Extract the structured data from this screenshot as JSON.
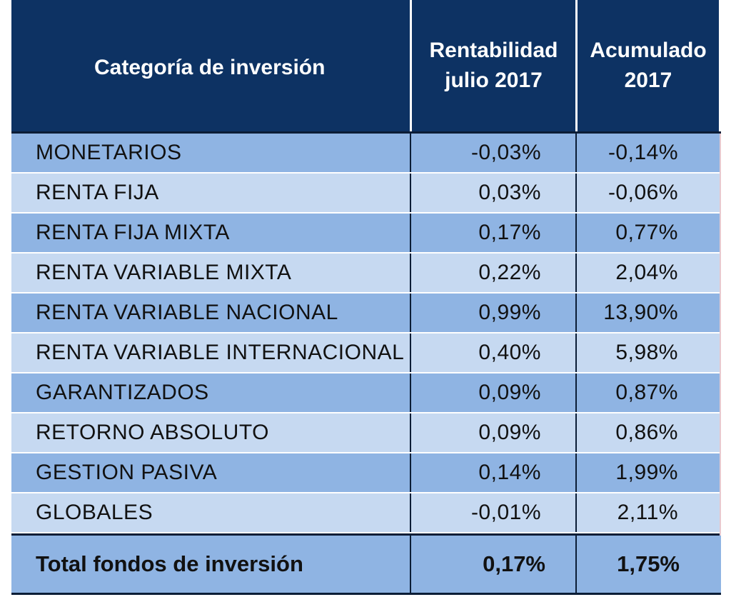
{
  "table": {
    "headers": {
      "category": "Categoría de inversión",
      "monthly_line1": "Rentabilidad",
      "monthly_line2": "julio 2017",
      "ytd_line1": "Acumulado",
      "ytd_line2": "2017"
    },
    "rows": [
      {
        "category": "MONETARIOS",
        "monthly": "-0,03%",
        "ytd": "-0,14%"
      },
      {
        "category": "RENTA FIJA",
        "monthly": "0,03%",
        "ytd": "-0,06%"
      },
      {
        "category": "RENTA FIJA MIXTA",
        "monthly": "0,17%",
        "ytd": "0,77%"
      },
      {
        "category": "RENTA VARIABLE MIXTA",
        "monthly": "0,22%",
        "ytd": "2,04%"
      },
      {
        "category": "RENTA VARIABLE NACIONAL",
        "monthly": "0,99%",
        "ytd": "13,90%"
      },
      {
        "category": "RENTA VARIABLE INTERNACIONAL",
        "monthly": "0,40%",
        "ytd": "5,98%"
      },
      {
        "category": "GARANTIZADOS",
        "monthly": "0,09%",
        "ytd": "0,87%"
      },
      {
        "category": "RETORNO ABSOLUTO",
        "monthly": "0,09%",
        "ytd": "0,86%"
      },
      {
        "category": "GESTION PASIVA",
        "monthly": "0,14%",
        "ytd": "1,99%"
      },
      {
        "category": "GLOBALES",
        "monthly": "-0,01%",
        "ytd": "2,11%"
      }
    ],
    "total": {
      "category": "Total fondos de inversión",
      "monthly": "0,17%",
      "ytd": "1,75%"
    },
    "colors": {
      "header_bg": "#0d3263",
      "row_dark": "#8fb4e3",
      "row_light": "#c6d9f1"
    }
  }
}
